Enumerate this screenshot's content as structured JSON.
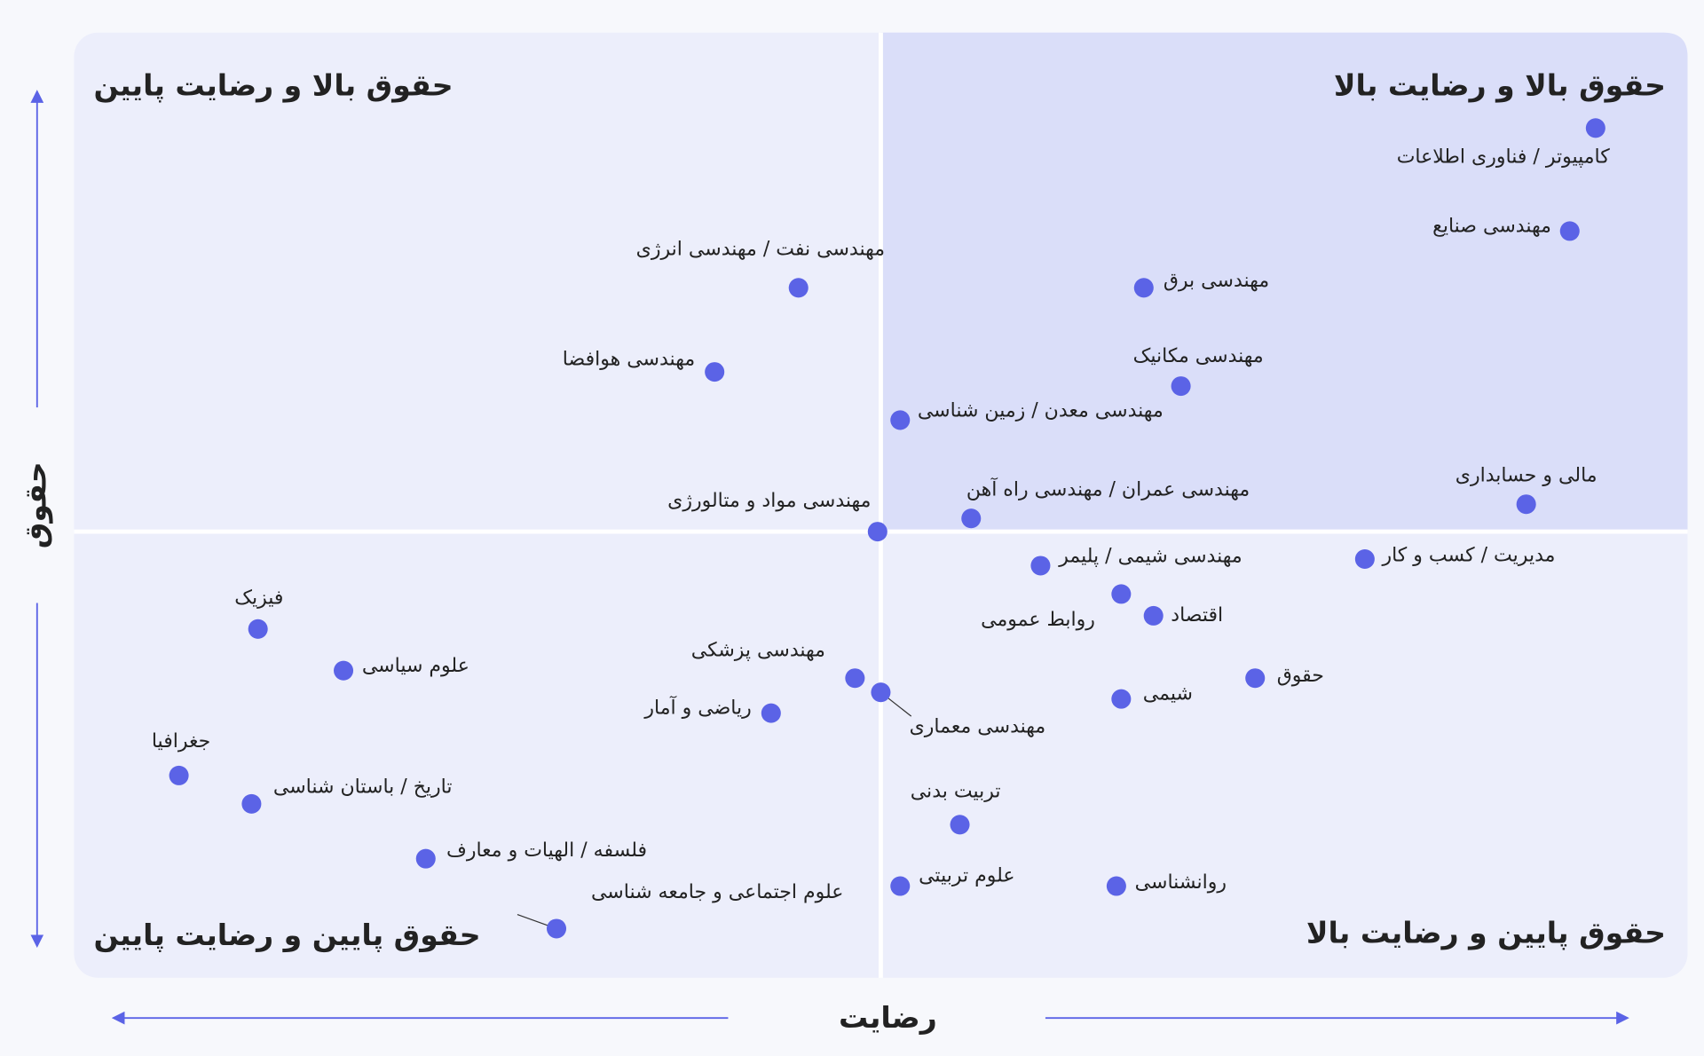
{
  "chart_data": {
    "type": "scatter",
    "x_label": "رضایت",
    "y_label": "حقوق",
    "quadrant_labels": {
      "top_left": "حقوق بالا و رضایت پایین",
      "top_right": "حقوق بالا و رضایت بالا",
      "bottom_left": "حقوق پایین و رضایت پایین",
      "bottom_right": "حقوق پایین و رضایت بالا"
    },
    "xlim": [
      0,
      100
    ],
    "ylim": [
      0,
      100
    ],
    "split": {
      "x": 50,
      "y": 47.2
    },
    "color": "#5b63e6",
    "points": [
      {
        "label": "کامپیوتر / فناوری اطلاعات",
        "x": 94.3,
        "y": 89.9
      },
      {
        "label": "مهندسی صنایع",
        "x": 92.7,
        "y": 79.0
      },
      {
        "label": "مهندسی برق",
        "x": 66.3,
        "y": 73.0
      },
      {
        "label": "مهندسی نفت / مهندسی انرژی",
        "x": 44.9,
        "y": 73.0
      },
      {
        "label": "مهندسی هوافضا",
        "x": 39.7,
        "y": 64.1
      },
      {
        "label": "مهندسی مکانیک",
        "x": 68.6,
        "y": 62.6
      },
      {
        "label": "مهندسی معدن / زمین شناسی",
        "x": 51.2,
        "y": 59.0
      },
      {
        "label": "مالی و حسابداری",
        "x": 90.0,
        "y": 50.1
      },
      {
        "label": "مهندسی عمران / مهندسی راه آهن",
        "x": 55.6,
        "y": 48.6
      },
      {
        "label": "مهندسی مواد و متالورژی",
        "x": 49.8,
        "y": 47.2
      },
      {
        "label": "مدیریت / کسب و کار",
        "x": 80.0,
        "y": 44.3
      },
      {
        "label": "مهندسی شیمی / پلیمر",
        "x": 59.9,
        "y": 43.6
      },
      {
        "label": "روابط عمومی",
        "x": 64.9,
        "y": 40.6
      },
      {
        "label": "اقتصاد",
        "x": 66.9,
        "y": 38.3
      },
      {
        "label": "فیزیک",
        "x": 11.4,
        "y": 36.9
      },
      {
        "label": "علوم سیاسی",
        "x": 16.7,
        "y": 32.5
      },
      {
        "label": "مهندسی پزشکی",
        "x": 48.4,
        "y": 31.7
      },
      {
        "label": "مهندسی معماری",
        "x": 50.0,
        "y": 30.2
      },
      {
        "label": "حقوق",
        "x": 73.2,
        "y": 31.7
      },
      {
        "label": "شیمی",
        "x": 64.9,
        "y": 29.5
      },
      {
        "label": "ریاضی و آمار",
        "x": 43.2,
        "y": 28.0
      },
      {
        "label": "جغرافیا",
        "x": 6.5,
        "y": 21.4
      },
      {
        "label": "تاریخ / باستان شناسی",
        "x": 11.0,
        "y": 18.4
      },
      {
        "label": "تربیت بدنی",
        "x": 54.9,
        "y": 16.2
      },
      {
        "label": "فلسفه / الهیات و معارف",
        "x": 21.8,
        "y": 12.6
      },
      {
        "label": "علوم تربیتی",
        "x": 51.2,
        "y": 9.7
      },
      {
        "label": "روانشناسی",
        "x": 64.6,
        "y": 9.7
      },
      {
        "label": "علوم اجتماعی و جامعه شناسی",
        "x": 29.9,
        "y": 5.2
      }
    ]
  }
}
